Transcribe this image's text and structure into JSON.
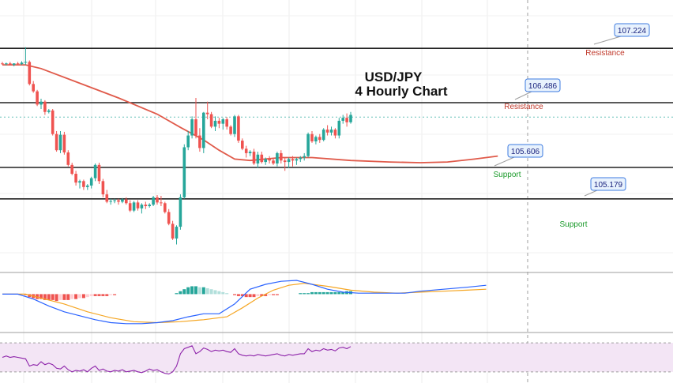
{
  "chart_data": {
    "type": "candlestick",
    "title_line1": "USD/JPY",
    "title_line2": "4 Hourly Chart",
    "colors": {
      "up": "#26a69a",
      "down": "#ef5350",
      "ma": "#e05a4a",
      "level_line": "#222222",
      "callout_bg": "#e8f2fd",
      "callout_border": "#3d7be0",
      "resistance_text": "#c0392b",
      "support_text": "#1a9a2a",
      "macd_line": "#2962ff",
      "signal_line": "#f5a623",
      "hist_up_strong": "#26a69a",
      "hist_up_weak": "#b2dfdb",
      "hist_down_strong": "#ef5350",
      "hist_down_weak": "#ffcdd2",
      "rsi_line": "#8e24aa",
      "rsi_band": "#f3e5f5"
    },
    "levels": [
      {
        "kind": "Resistance",
        "price": 107.224,
        "label": "107.224",
        "tag": "Resistance"
      },
      {
        "kind": "Resistance",
        "price": 106.486,
        "label": "106.486",
        "tag": "Resistance"
      },
      {
        "kind": "Support",
        "price": 105.606,
        "label": "105.606",
        "tag": "Support"
      },
      {
        "kind": "Support",
        "price": 105.179,
        "label": "105.179",
        "tag": "Support"
      }
    ],
    "current_price": 106.29,
    "price_range": [
      104.55,
      107.5
    ],
    "candles": [
      [
        107.02,
        107.04,
        107.0,
        107.01
      ],
      [
        107.01,
        107.03,
        106.99,
        107.02
      ],
      [
        107.02,
        107.04,
        107.0,
        107.0
      ],
      [
        107.0,
        107.02,
        106.98,
        107.02
      ],
      [
        107.02,
        107.04,
        107.0,
        107.01
      ],
      [
        107.01,
        107.05,
        107.0,
        107.03
      ],
      [
        107.03,
        107.24,
        107.0,
        107.04
      ],
      [
        107.04,
        107.06,
        106.72,
        106.74
      ],
      [
        106.74,
        106.78,
        106.62,
        106.64
      ],
      [
        106.64,
        106.66,
        106.44,
        106.46
      ],
      [
        106.46,
        106.54,
        106.4,
        106.5
      ],
      [
        106.5,
        106.52,
        106.32,
        106.36
      ],
      [
        106.36,
        106.4,
        106.34,
        106.38
      ],
      [
        106.38,
        106.4,
        106.04,
        106.06
      ],
      [
        106.06,
        106.1,
        105.82,
        105.84
      ],
      [
        105.84,
        106.1,
        105.8,
        106.05
      ],
      [
        106.05,
        106.09,
        105.78,
        105.81
      ],
      [
        105.81,
        105.84,
        105.62,
        105.64
      ],
      [
        105.64,
        105.67,
        105.5,
        105.52
      ],
      [
        105.52,
        105.56,
        105.36,
        105.4
      ],
      [
        105.4,
        105.44,
        105.32,
        105.42
      ],
      [
        105.42,
        105.44,
        105.3,
        105.34
      ],
      [
        105.34,
        105.38,
        105.3,
        105.36
      ],
      [
        105.36,
        105.48,
        105.32,
        105.46
      ],
      [
        105.46,
        105.66,
        105.42,
        105.64
      ],
      [
        105.64,
        105.67,
        105.38,
        105.42
      ],
      [
        105.42,
        105.45,
        105.2,
        105.24
      ],
      [
        105.24,
        105.3,
        105.12,
        105.14
      ],
      [
        105.14,
        105.18,
        105.1,
        105.15
      ],
      [
        105.15,
        105.18,
        105.12,
        105.16
      ],
      [
        105.16,
        105.18,
        105.1,
        105.14
      ],
      [
        105.14,
        105.19,
        105.12,
        105.17
      ],
      [
        105.17,
        105.2,
        105.1,
        105.12
      ],
      [
        105.12,
        105.16,
        105.0,
        105.02
      ],
      [
        105.02,
        105.15,
        105.0,
        105.13
      ],
      [
        105.13,
        105.16,
        105.02,
        105.05
      ],
      [
        105.05,
        105.12,
        104.98,
        105.1
      ],
      [
        105.1,
        105.14,
        105.04,
        105.08
      ],
      [
        105.08,
        105.12,
        105.06,
        105.1
      ],
      [
        105.1,
        105.22,
        105.08,
        105.2
      ],
      [
        105.2,
        105.23,
        105.1,
        105.13
      ],
      [
        105.13,
        105.22,
        105.08,
        105.12
      ],
      [
        105.12,
        105.14,
        104.98,
        105.0
      ],
      [
        105.0,
        105.04,
        104.82,
        104.84
      ],
      [
        104.84,
        104.88,
        104.62,
        104.64
      ],
      [
        104.64,
        104.82,
        104.56,
        104.8
      ],
      [
        104.8,
        105.24,
        104.76,
        105.2
      ],
      [
        105.2,
        105.92,
        105.18,
        105.88
      ],
      [
        105.88,
        106.1,
        105.84,
        106.04
      ],
      [
        106.04,
        106.3,
        106.0,
        106.26
      ],
      [
        106.26,
        106.55,
        106.0,
        106.04
      ],
      [
        106.04,
        106.14,
        105.82,
        105.87
      ],
      [
        105.87,
        106.36,
        105.8,
        106.35
      ],
      [
        106.35,
        106.5,
        106.26,
        106.33
      ],
      [
        106.33,
        106.36,
        106.14,
        106.16
      ],
      [
        106.16,
        106.3,
        106.1,
        106.24
      ],
      [
        106.24,
        106.28,
        106.14,
        106.2
      ],
      [
        106.2,
        106.28,
        106.12,
        106.26
      ],
      [
        106.26,
        106.29,
        106.12,
        106.16
      ],
      [
        106.16,
        106.18,
        106.04,
        106.06
      ],
      [
        106.06,
        106.32,
        106.02,
        106.3
      ],
      [
        106.3,
        106.32,
        105.94,
        105.97
      ],
      [
        105.97,
        106.0,
        105.84,
        105.86
      ],
      [
        105.86,
        105.9,
        105.74,
        105.8
      ],
      [
        105.8,
        105.84,
        105.76,
        105.82
      ],
      [
        105.82,
        105.86,
        105.64,
        105.66
      ],
      [
        105.66,
        105.82,
        105.6,
        105.78
      ],
      [
        105.78,
        105.82,
        105.66,
        105.68
      ],
      [
        105.68,
        105.74,
        105.64,
        105.72
      ],
      [
        105.72,
        105.76,
        105.66,
        105.7
      ],
      [
        105.7,
        105.74,
        105.64,
        105.66
      ],
      [
        105.66,
        105.82,
        105.62,
        105.8
      ],
      [
        105.8,
        105.84,
        105.66,
        105.7
      ],
      [
        105.7,
        105.74,
        105.56,
        105.68
      ],
      [
        105.68,
        105.74,
        105.6,
        105.72
      ],
      [
        105.72,
        105.76,
        105.62,
        105.7
      ],
      [
        105.7,
        105.74,
        105.64,
        105.72
      ],
      [
        105.72,
        105.76,
        105.68,
        105.74
      ],
      [
        105.74,
        105.8,
        105.7,
        105.76
      ],
      [
        105.76,
        106.08,
        105.74,
        106.06
      ],
      [
        106.06,
        106.1,
        105.94,
        105.96
      ],
      [
        105.96,
        106.04,
        105.92,
        106.02
      ],
      [
        106.02,
        106.06,
        105.94,
        105.98
      ],
      [
        105.98,
        106.14,
        105.96,
        106.12
      ],
      [
        106.12,
        106.18,
        106.04,
        106.08
      ],
      [
        106.08,
        106.16,
        106.04,
        106.12
      ],
      [
        106.12,
        106.14,
        106.0,
        106.04
      ],
      [
        106.04,
        106.28,
        106.0,
        106.24
      ],
      [
        106.24,
        106.32,
        106.2,
        106.28
      ],
      [
        106.28,
        106.34,
        106.16,
        106.22
      ],
      [
        106.22,
        106.36,
        106.2,
        106.32
      ]
    ],
    "ma": [
      [
        0,
        107.0
      ],
      [
        6,
        107.0
      ],
      [
        10,
        106.95
      ],
      [
        20,
        106.75
      ],
      [
        30,
        106.55
      ],
      [
        40,
        106.33
      ],
      [
        46,
        106.15
      ],
      [
        52,
        105.98
      ],
      [
        56,
        105.84
      ],
      [
        60,
        105.72
      ],
      [
        64,
        105.7
      ],
      [
        72,
        105.74
      ],
      [
        80,
        105.74
      ],
      [
        90,
        105.7
      ],
      [
        100,
        105.68
      ],
      [
        108,
        105.67
      ],
      [
        115,
        105.68
      ],
      [
        122,
        105.72
      ],
      [
        128,
        105.76
      ]
    ],
    "macd": {
      "range": [
        -0.35,
        0.18
      ],
      "histogram": [
        0.0,
        0.0,
        0.0,
        0.0,
        0.0,
        0.0,
        -0.01,
        -0.03,
        -0.04,
        -0.05,
        -0.05,
        -0.06,
        -0.06,
        -0.06,
        -0.07,
        -0.06,
        -0.06,
        -0.06,
        -0.05,
        -0.05,
        -0.04,
        -0.04,
        -0.03,
        -0.02,
        -0.02,
        -0.02,
        -0.02,
        -0.02,
        -0.01,
        -0.01,
        0.0,
        0.0,
        0.0,
        0.0,
        0.0,
        0.0,
        0.0,
        0.0,
        0.0,
        0.0,
        0.0,
        0.0,
        0.0,
        0.0,
        0.0,
        0.01,
        0.03,
        0.05,
        0.07,
        0.08,
        0.08,
        0.07,
        0.07,
        0.06,
        0.05,
        0.04,
        0.03,
        0.02,
        0.01,
        0.0,
        -0.01,
        -0.02,
        -0.02,
        -0.03,
        -0.03,
        -0.03,
        -0.02,
        -0.02,
        -0.02,
        -0.01,
        -0.01,
        -0.01,
        0.0,
        0.0,
        0.0,
        0.0,
        0.0,
        0.01,
        0.01,
        0.01,
        0.02,
        0.02,
        0.02,
        0.02,
        0.02,
        0.02,
        0.02,
        0.02,
        0.02,
        0.03,
        0.03
      ],
      "macd_line": [
        [
          0,
          0.0
        ],
        [
          4,
          0.0
        ],
        [
          8,
          -0.05
        ],
        [
          12,
          -0.12
        ],
        [
          16,
          -0.18
        ],
        [
          20,
          -0.22
        ],
        [
          24,
          -0.26
        ],
        [
          28,
          -0.29
        ],
        [
          32,
          -0.3
        ],
        [
          36,
          -0.3
        ],
        [
          40,
          -0.29
        ],
        [
          44,
          -0.27
        ],
        [
          48,
          -0.23
        ],
        [
          52,
          -0.2
        ],
        [
          56,
          -0.2
        ],
        [
          60,
          -0.1
        ],
        [
          64,
          0.05
        ],
        [
          68,
          0.1
        ],
        [
          72,
          0.13
        ],
        [
          76,
          0.14
        ],
        [
          80,
          0.1
        ],
        [
          84,
          0.05
        ],
        [
          88,
          0.02
        ],
        [
          92,
          0.01
        ],
        [
          96,
          0.01
        ],
        [
          100,
          0.01
        ],
        [
          104,
          0.01
        ],
        [
          108,
          0.03
        ],
        [
          114,
          0.05
        ],
        [
          120,
          0.07
        ],
        [
          125,
          0.09
        ]
      ],
      "signal_line": [
        [
          0,
          0.0
        ],
        [
          6,
          0.0
        ],
        [
          10,
          -0.04
        ],
        [
          16,
          -0.1
        ],
        [
          22,
          -0.18
        ],
        [
          28,
          -0.24
        ],
        [
          34,
          -0.28
        ],
        [
          40,
          -0.29
        ],
        [
          46,
          -0.28
        ],
        [
          52,
          -0.26
        ],
        [
          58,
          -0.23
        ],
        [
          62,
          -0.14
        ],
        [
          66,
          -0.04
        ],
        [
          70,
          0.04
        ],
        [
          74,
          0.09
        ],
        [
          78,
          0.11
        ],
        [
          84,
          0.08
        ],
        [
          90,
          0.04
        ],
        [
          96,
          0.02
        ],
        [
          102,
          0.01
        ],
        [
          108,
          0.02
        ],
        [
          114,
          0.03
        ],
        [
          120,
          0.04
        ],
        [
          125,
          0.05
        ]
      ]
    },
    "rsi": {
      "range": [
        20,
        80
      ],
      "band": [
        30,
        70
      ],
      "values": [
        50,
        52,
        50,
        51,
        50,
        49,
        48,
        38,
        40,
        39,
        44,
        40,
        42,
        40,
        35,
        34,
        38,
        33,
        30,
        32,
        31,
        33,
        30,
        35,
        38,
        32,
        34,
        31,
        30,
        32,
        31,
        33,
        30,
        31,
        32,
        30,
        29,
        31,
        34,
        32,
        33,
        30,
        28,
        27,
        30,
        38,
        55,
        62,
        64,
        66,
        55,
        58,
        63,
        61,
        58,
        60,
        59,
        60,
        58,
        57,
        62,
        55,
        53,
        52,
        53,
        52,
        54,
        53,
        52,
        53,
        54,
        55,
        53,
        52,
        54,
        53,
        54,
        55,
        55,
        62,
        58,
        60,
        59,
        62,
        60,
        61,
        59,
        63,
        64,
        62,
        65
      ]
    }
  }
}
